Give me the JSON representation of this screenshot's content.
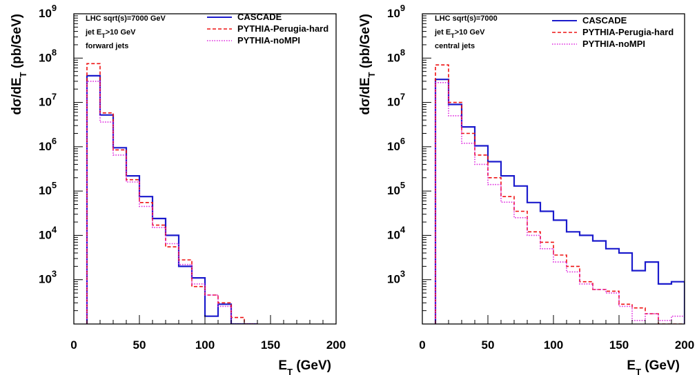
{
  "colors": {
    "CASCADE": "#1a1acc",
    "PYTHIA-Perugia-hard": "#ee1111",
    "PYTHIA-noMPI": "#dd22dd"
  },
  "chart_data": [
    {
      "type": "line",
      "step": true,
      "xlabel": "E_T (GeV)",
      "ylabel": "dσ/dE_T (pb/GeV)",
      "xlim": [
        0,
        200
      ],
      "ylim": [
        100,
        1000000000
      ],
      "log_y": true,
      "xticks": [
        0,
        50,
        100,
        150,
        200
      ],
      "ytick_exponents": [
        3,
        4,
        5,
        6,
        7,
        8,
        9
      ],
      "info_lines": [
        "LHC sqrt(s)=7000 GeV",
        "jet E_T>10 GeV",
        "forward jets"
      ],
      "legend_position": "top-right",
      "bin_edges": [
        10,
        20,
        30,
        40,
        50,
        60,
        70,
        80,
        90,
        100,
        110,
        120,
        130,
        140
      ],
      "series": [
        {
          "name": "CASCADE",
          "style": "solid",
          "values": [
            40000000,
            5200000,
            950000,
            220000,
            75000,
            24000,
            10000,
            2000,
            1100,
            150,
            280,
            0,
            0
          ]
        },
        {
          "name": "PYTHIA-Perugia-hard",
          "style": "dashed",
          "values": [
            75000000,
            5800000,
            850000,
            180000,
            55000,
            17000,
            5500,
            2800,
            700,
            450,
            300,
            140,
            100
          ]
        },
        {
          "name": "PYTHIA-noMPI",
          "style": "dotted",
          "values": [
            30000000,
            3600000,
            650000,
            160000,
            45000,
            15000,
            6500,
            2200,
            800,
            450,
            250,
            0,
            0
          ]
        }
      ]
    },
    {
      "type": "line",
      "step": true,
      "xlabel": "E_T (GeV)",
      "ylabel": "dσ/dE_T (pb/GeV)",
      "xlim": [
        0,
        200
      ],
      "ylim": [
        100,
        1000000000
      ],
      "log_y": true,
      "xticks": [
        0,
        50,
        100,
        150,
        200
      ],
      "ytick_exponents": [
        3,
        4,
        5,
        6,
        7,
        8,
        9
      ],
      "info_lines": [
        "LHC sqrt(s)=7000",
        "jet E_T>10 GeV",
        "central jets"
      ],
      "legend_position": "top-right",
      "bin_edges": [
        10,
        20,
        30,
        40,
        50,
        60,
        70,
        80,
        90,
        100,
        110,
        120,
        130,
        140,
        150,
        160,
        170,
        180,
        190,
        200
      ],
      "series": [
        {
          "name": "CASCADE",
          "style": "solid",
          "values": [
            33000000,
            9000000,
            2800000,
            1050000,
            460000,
            220000,
            130000,
            55000,
            35000,
            22000,
            12000,
            10000,
            7500,
            5000,
            4000,
            1600,
            2500,
            800,
            900
          ]
        },
        {
          "name": "PYTHIA-Perugia-hard",
          "style": "dashed",
          "values": [
            70000000,
            10000000,
            2000000,
            650000,
            200000,
            75000,
            35000,
            12000,
            7000,
            3600,
            2000,
            900,
            600,
            550,
            280,
            230,
            170,
            100,
            100
          ]
        },
        {
          "name": "PYTHIA-noMPI",
          "style": "dotted",
          "values": [
            28000000,
            5000000,
            1200000,
            400000,
            140000,
            56000,
            25000,
            10000,
            5000,
            2500,
            1500,
            800,
            600,
            500,
            250,
            120,
            170,
            120,
            150
          ]
        }
      ]
    }
  ]
}
